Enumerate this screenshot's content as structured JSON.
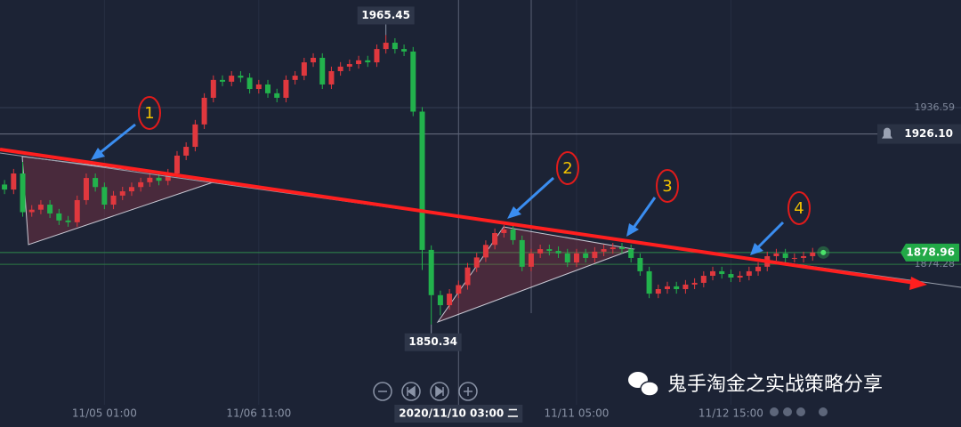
{
  "chart_data": {
    "type": "candlestick",
    "up_color": "#e0383e",
    "down_color": "#22b24c",
    "xlim": [
      -0.5,
      97.5
    ],
    "ylim": [
      1818.4,
      1979.4
    ],
    "xticks": [
      {
        "value": 11,
        "label": "11/05 01:00"
      },
      {
        "value": 28,
        "label": "11/06 11:00"
      },
      {
        "value": 63,
        "label": "11/11 05:00"
      },
      {
        "value": 80,
        "label": "11/12 15:00"
      }
    ],
    "crosshair_x": {
      "value": 50,
      "label": "2020/11/10 03:00 二"
    },
    "yticks": [
      1936.59,
      1874.28
    ],
    "alert_line": {
      "value": 1926.1,
      "label": "1926.10"
    },
    "grid": true,
    "max_index": 42,
    "min_index": 47,
    "annotations": [
      "1",
      "2",
      "3",
      "4"
    ],
    "watermark": "鬼手淘金之实战策略分享",
    "open": [
      1906,
      1904,
      1910.4,
      1895,
      1896,
      1898,
      1894.5,
      1891.7,
      1891,
      1899.8,
      1908.6,
      1905,
      1898,
      1901.6,
      1903.3,
      1905,
      1906.9,
      1908.7,
      1907.5,
      1910.4,
      1917.5,
      1921,
      1929.9,
      1940.5,
      1947.6,
      1946.9,
      1949.3,
      1948.5,
      1944,
      1945.8,
      1942.3,
      1940.5,
      1947.6,
      1949.3,
      1954.6,
      1956.4,
      1945.8,
      1951.1,
      1952.9,
      1953.9,
      1955.4,
      1954.6,
      1959.9,
      1962.4,
      1959.9,
      1958.9,
      1935,
      1880,
      1862,
      1858,
      1862.6,
      1866,
      1873,
      1877,
      1882,
      1886.7,
      1888.1,
      1883.9,
      1873.3,
      1878.6,
      1880.3,
      1879.6,
      1878.6,
      1875,
      1878.6,
      1876.8,
      1879.3,
      1880.3,
      1881,
      1880.3,
      1876.8,
      1871.5,
      1862.6,
      1864.4,
      1865.5,
      1864.4,
      1866.2,
      1866.9,
      1869.7,
      1871.5,
      1870.4,
      1869,
      1869.7,
      1871.5,
      1873.3,
      1877.5,
      1878.6,
      1876.8,
      1876.8,
      1877.5
    ],
    "high": [
      1907.8,
      1912.2,
      1915,
      1897.8,
      1899.8,
      1899.8,
      1896.3,
      1893.5,
      1901.6,
      1910.4,
      1910.4,
      1906.8,
      1903.4,
      1905.1,
      1906.8,
      1908.7,
      1910.5,
      1910.5,
      1912.2,
      1919.3,
      1922.8,
      1931.7,
      1942.3,
      1949.4,
      1949.4,
      1951.1,
      1951.1,
      1950.3,
      1947.6,
      1947.6,
      1944.1,
      1949.4,
      1951.1,
      1956.4,
      1958.2,
      1958.2,
      1952.9,
      1954.7,
      1955.7,
      1957.2,
      1957.2,
      1961.7,
      1965.45,
      1964.2,
      1961.7,
      1960.7,
      1936.8,
      1881.8,
      1863.8,
      1864.4,
      1867.8,
      1874.8,
      1878.8,
      1883.8,
      1888.5,
      1889.9,
      1889.9,
      1885.7,
      1880.4,
      1882.1,
      1882.1,
      1881.4,
      1880.4,
      1880.4,
      1880.4,
      1881.1,
      1882.1,
      1882.8,
      1882.8,
      1882.1,
      1878.6,
      1873.3,
      1866.2,
      1867.3,
      1867.3,
      1868,
      1868.7,
      1871.5,
      1873.3,
      1873.3,
      1872.2,
      1871.5,
      1873.3,
      1875.1,
      1879.3,
      1880.4,
      1880.4,
      1878.6,
      1879.3,
      1880.8
    ],
    "low": [
      1902.2,
      1902.2,
      1893.2,
      1893.2,
      1894.2,
      1892.7,
      1889.9,
      1889.2,
      1889.2,
      1898,
      1903.2,
      1896.2,
      1896.2,
      1899.8,
      1901.5,
      1903.2,
      1905.1,
      1905.7,
      1905.7,
      1908.6,
      1915.7,
      1919.2,
      1928.1,
      1938.7,
      1945.1,
      1945.1,
      1946.7,
      1942.2,
      1942.2,
      1940.5,
      1938.7,
      1938.7,
      1945.8,
      1947.5,
      1952.8,
      1944,
      1944,
      1949.3,
      1951.1,
      1952.1,
      1952.8,
      1952.8,
      1958.1,
      1958.1,
      1957.1,
      1933.2,
      1872,
      1850.34,
      1854,
      1856.2,
      1860.8,
      1864.2,
      1871.2,
      1875.2,
      1880.2,
      1884.9,
      1882.1,
      1871.5,
      1871.5,
      1876.8,
      1877.8,
      1876.8,
      1873.2,
      1873.2,
      1875,
      1875,
      1877.5,
      1878.5,
      1878.5,
      1875,
      1869.7,
      1860.8,
      1860.8,
      1862.6,
      1862.6,
      1862.6,
      1864.4,
      1865.1,
      1867.9,
      1868.6,
      1867.2,
      1867.2,
      1867.9,
      1869.7,
      1871.5,
      1875.7,
      1875,
      1875,
      1875,
      1875.7
    ],
    "close": [
      1904,
      1910.4,
      1895,
      1896,
      1898,
      1894.5,
      1891.7,
      1891,
      1899.8,
      1908.6,
      1905,
      1898,
      1901.6,
      1903.3,
      1905,
      1906.9,
      1908.7,
      1907.5,
      1910.4,
      1917.5,
      1921,
      1929.9,
      1940.5,
      1947.6,
      1946.9,
      1949.3,
      1948.5,
      1944,
      1945.8,
      1942.3,
      1940.5,
      1947.6,
      1949.3,
      1954.6,
      1956.4,
      1945.8,
      1951.1,
      1952.9,
      1953.9,
      1955.4,
      1954.6,
      1959.9,
      1962.4,
      1959.9,
      1958.9,
      1935,
      1880,
      1862,
      1858,
      1862.6,
      1866,
      1873,
      1877,
      1882,
      1886.7,
      1888.1,
      1883.9,
      1873.3,
      1878.6,
      1880.3,
      1879.6,
      1878.6,
      1875,
      1878.6,
      1876.8,
      1879.3,
      1880.3,
      1881,
      1880.3,
      1876.8,
      1871.5,
      1862.6,
      1864.4,
      1865.5,
      1864.4,
      1866.2,
      1866.9,
      1869.7,
      1871.5,
      1870.4,
      1869,
      1869.7,
      1871.5,
      1873.3,
      1877.5,
      1878.6,
      1876.8,
      1876.8,
      1877.5,
      1878.96
    ]
  }
}
